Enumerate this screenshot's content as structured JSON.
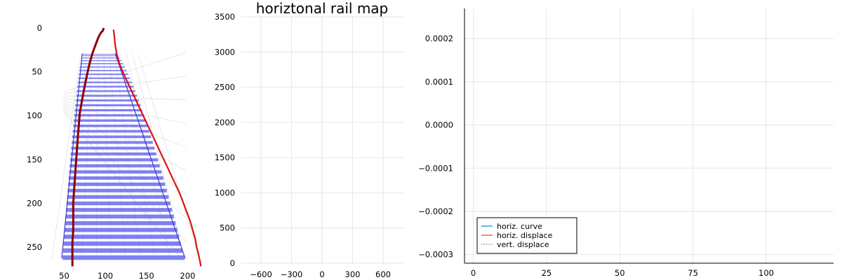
{
  "chart_data": [
    {
      "type": "image",
      "title": "",
      "xlabel": "",
      "ylabel": "",
      "x_ticks": [
        50,
        100,
        150,
        200
      ],
      "y_ticks": [
        0,
        50,
        100,
        150,
        200,
        250
      ],
      "xlim": [
        30,
        215
      ],
      "ylim": [
        0,
        270
      ],
      "y_inverted": true,
      "grid": false,
      "colors": {
        "ties": "#6a6af0",
        "rails": "#3b3bc8",
        "track_left": "#8b0000",
        "track_right": "#dd1111",
        "perspective_grid": "#d8d8d8"
      },
      "series": [
        {
          "color": "#8b0000",
          "points": [
            [
              98,
              0
            ],
            [
              97,
              3
            ],
            [
              95,
              5
            ],
            [
              93,
              8
            ],
            [
              91,
              12
            ],
            [
              89,
              17
            ],
            [
              87,
              22
            ],
            [
              85,
              27
            ],
            [
              83,
              33
            ],
            [
              81,
              40
            ],
            [
              79,
              48
            ],
            [
              77,
              57
            ],
            [
              75,
              66
            ],
            [
              73,
              76
            ],
            [
              71,
              86
            ],
            [
              69,
              97
            ],
            [
              68,
              108
            ],
            [
              67,
              120
            ],
            [
              66,
              132
            ],
            [
              65,
              145
            ],
            [
              64,
              158
            ],
            [
              63,
              172
            ],
            [
              62,
              186
            ],
            [
              61,
              200
            ],
            [
              61,
              215
            ],
            [
              61,
              230
            ],
            [
              60,
              245
            ],
            [
              60,
              260
            ],
            [
              60,
              272
            ]
          ]
        },
        {
          "color": "#dd1111",
          "points": [
            [
              110,
              2
            ],
            [
              111,
              10
            ],
            [
              112,
              20
            ],
            [
              114,
              30
            ],
            [
              117,
              40
            ],
            [
              121,
              50
            ],
            [
              126,
              60
            ],
            [
              131,
              70
            ],
            [
              136,
              80
            ],
            [
              141,
              90
            ],
            [
              146,
              100
            ],
            [
              151,
              110
            ],
            [
              156,
              120
            ],
            [
              161,
              130
            ],
            [
              166,
              140
            ],
            [
              171,
              150
            ],
            [
              176,
              160
            ],
            [
              181,
              170
            ],
            [
              186,
              180
            ],
            [
              191,
              190
            ],
            [
              195,
              200
            ],
            [
              199,
              210
            ],
            [
              203,
              220
            ],
            [
              206,
              230
            ],
            [
              209,
              240
            ],
            [
              211,
              250
            ],
            [
              213,
              258
            ],
            [
              215,
              266
            ],
            [
              216,
              272
            ]
          ]
        }
      ]
    },
    {
      "type": "line",
      "title": "horiztonal rail map",
      "xlabel": "",
      "ylabel": "",
      "x_ticks": [
        -600,
        -300,
        0,
        300,
        600
      ],
      "x_tick_labels": [
        "−600",
        "−300",
        "0",
        "300",
        "600"
      ],
      "y_ticks": [
        0,
        500,
        1000,
        1500,
        2000,
        2500,
        3000,
        3500
      ],
      "xlim": [
        -800,
        800
      ],
      "ylim": [
        0,
        3500
      ],
      "grid": true,
      "series": []
    },
    {
      "type": "line",
      "title": "",
      "xlabel": "",
      "ylabel": "",
      "x_ticks": [
        0,
        25,
        50,
        75,
        100
      ],
      "y_ticks": [
        -0.0003,
        -0.0002,
        -0.0001,
        0,
        0.0001,
        0.0002
      ],
      "y_tick_labels": [
        "−0.0003",
        "−0.0002",
        "−0.0001",
        "0.0000",
        "0.0001",
        "0.0002"
      ],
      "xlim": [
        -3,
        123
      ],
      "ylim": [
        -0.00032,
        0.00027
      ],
      "grid": true,
      "legend_position": "bottom-left",
      "series": [
        {
          "name": "horiz. curve",
          "color": "#3da5f4",
          "dash": "solid",
          "x": [],
          "y": []
        },
        {
          "name": "horiz. displace",
          "color": "#ea6b6b",
          "dash": "solid",
          "x": [],
          "y": []
        },
        {
          "name": "vert. displace",
          "color": "#7fa85a",
          "dash": "dotted",
          "x": [],
          "y": []
        }
      ]
    }
  ]
}
